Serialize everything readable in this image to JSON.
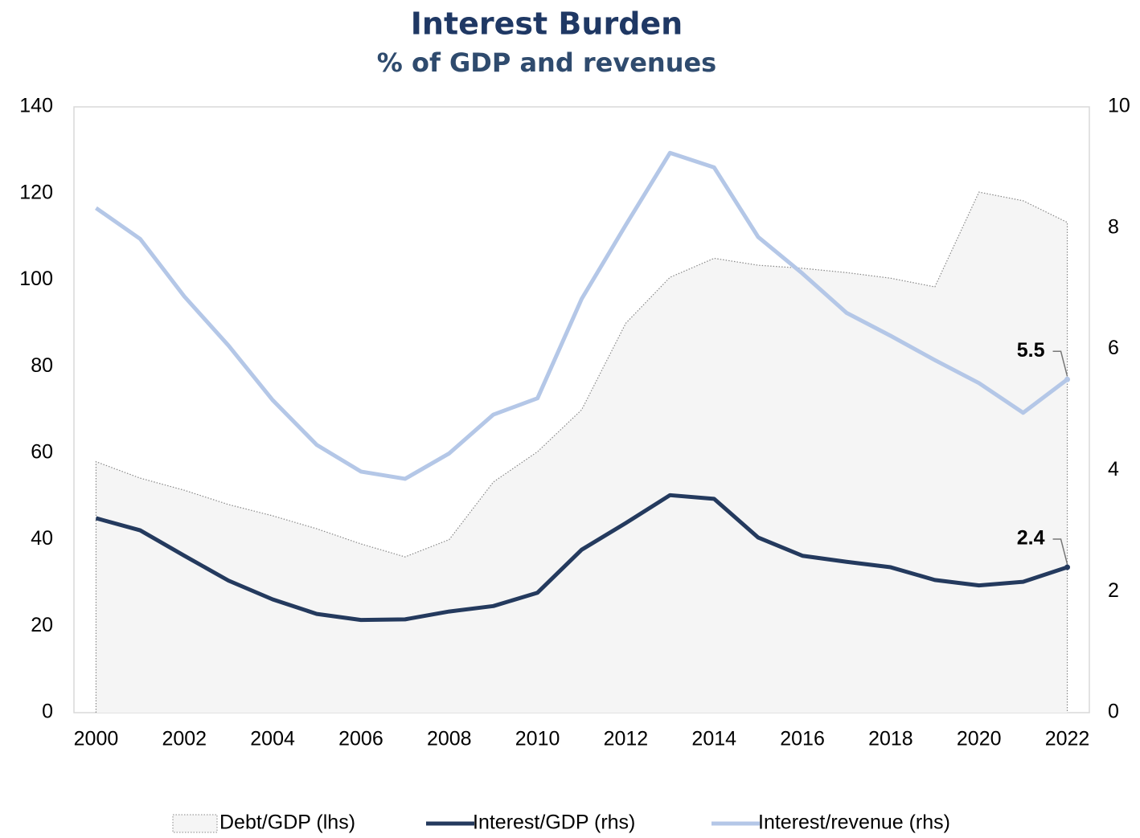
{
  "chart_data": {
    "type": "line",
    "title": "Interest Burden",
    "subtitle": "% of GDP and revenues",
    "x": [
      2000,
      2001,
      2002,
      2003,
      2004,
      2005,
      2006,
      2007,
      2008,
      2009,
      2010,
      2011,
      2012,
      2013,
      2014,
      2015,
      2016,
      2017,
      2018,
      2019,
      2020,
      2021,
      2022
    ],
    "xlim": [
      1999.5,
      2022.5
    ],
    "xticks": [
      2000,
      2002,
      2004,
      2006,
      2008,
      2010,
      2012,
      2014,
      2016,
      2018,
      2020,
      2022
    ],
    "ylim": [
      0,
      140
    ],
    "yticks": [
      0,
      20,
      40,
      60,
      80,
      100,
      120,
      140
    ],
    "y2lim": [
      0,
      10
    ],
    "y2ticks": [
      0,
      2,
      4,
      6,
      8,
      10
    ],
    "grid": false,
    "legend": "bottom",
    "series": [
      {
        "name": "Debt/GDP (lhs)",
        "type": "area",
        "axis": "y",
        "color": "#f5f5f5",
        "values": [
          58,
          54.2,
          51.4,
          48.1,
          45.5,
          42.5,
          39,
          36,
          40,
          53.3,
          60.3,
          70,
          90,
          100.6,
          105,
          103.4,
          102.7,
          101.7,
          100.4,
          98.4,
          120.3,
          118.3,
          113.3
        ]
      },
      {
        "name": "Interest/GDP (rhs)",
        "type": "line",
        "axis": "y2",
        "color": "#243a5e",
        "values": [
          3.21,
          3.01,
          2.59,
          2.18,
          1.87,
          1.63,
          1.53,
          1.54,
          1.67,
          1.76,
          1.98,
          2.69,
          3.13,
          3.59,
          3.53,
          2.89,
          2.59,
          2.49,
          2.4,
          2.19,
          2.1,
          2.16,
          2.4
        ],
        "value_labels": [
          null,
          null,
          null,
          null,
          null,
          null,
          null,
          null,
          null,
          null,
          null,
          null,
          null,
          null,
          null,
          null,
          null,
          null,
          null,
          null,
          null,
          null,
          "2.4"
        ]
      },
      {
        "name": "Interest/revenue (rhs)",
        "type": "line",
        "axis": "y2",
        "color": "#b4c7e7",
        "values": [
          8.33,
          7.82,
          6.87,
          6.06,
          5.16,
          4.42,
          3.98,
          3.86,
          4.28,
          4.92,
          5.19,
          6.83,
          8.05,
          9.24,
          9.0,
          7.85,
          7.25,
          6.6,
          6.22,
          5.82,
          5.44,
          4.95,
          5.5
        ],
        "value_labels": [
          null,
          null,
          null,
          null,
          null,
          null,
          null,
          null,
          null,
          null,
          null,
          null,
          null,
          null,
          null,
          null,
          null,
          null,
          null,
          null,
          null,
          null,
          "5.5"
        ]
      }
    ]
  }
}
